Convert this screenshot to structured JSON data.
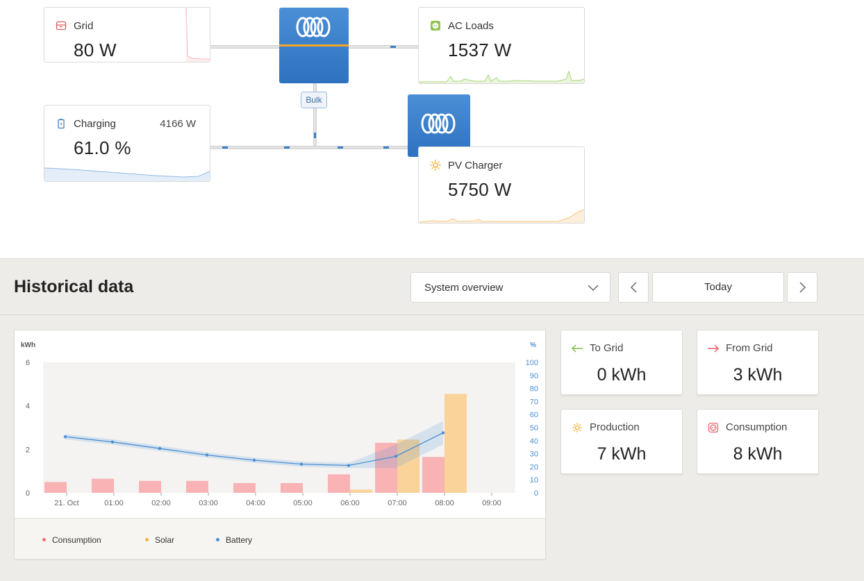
{
  "overview": {
    "grid": {
      "title": "Grid",
      "value": "80 W"
    },
    "ac_loads": {
      "title": "AC Loads",
      "value": "1537 W"
    },
    "battery": {
      "title": "Charging",
      "power": "4166 W",
      "value": "61.0 %"
    },
    "pv_charger": {
      "title": "PV Charger",
      "value": "5750 W"
    },
    "inverter_state": "Bulk"
  },
  "historical": {
    "title": "Historical data",
    "view_select": "System overview",
    "date_label": "Today",
    "stats": [
      {
        "title": "To Grid",
        "value": "0 kWh",
        "icon": "arrow-left-icon"
      },
      {
        "title": "From Grid",
        "value": "3 kWh",
        "icon": "arrow-right-icon"
      },
      {
        "title": "Production",
        "value": "7 kWh",
        "icon": "sun-icon"
      },
      {
        "title": "Consumption",
        "value": "8 kWh",
        "icon": "socket-icon"
      }
    ],
    "legend": [
      {
        "name": "Consumption",
        "color": "#f0707a"
      },
      {
        "name": "Solar",
        "color": "#f5b041"
      },
      {
        "name": "Battery",
        "color": "#4a8fd6"
      }
    ]
  },
  "colors": {
    "consumption": "#f9b3b5",
    "solar": "#f9d39a",
    "battery": "#4a8fd6",
    "accent": "#3a7fc8"
  },
  "chart_data": {
    "type": "bar",
    "ylabel_left": "kWh",
    "ylabel_right": "%",
    "ylim_left": [
      0,
      6
    ],
    "ylim_right": [
      0,
      100
    ],
    "yticks_left": [
      "0",
      "2",
      "4",
      "6"
    ],
    "yticks_right": [
      "0",
      "10",
      "20",
      "30",
      "40",
      "50",
      "60",
      "70",
      "80",
      "90",
      "100"
    ],
    "categories": [
      "21. Oct",
      "01:00",
      "02:00",
      "03:00",
      "04:00",
      "05:00",
      "06:00",
      "07:00",
      "08:00",
      "09:00"
    ],
    "series": [
      {
        "name": "Consumption",
        "axis": "left",
        "values": [
          0.5,
          0.65,
          0.55,
          0.55,
          0.45,
          0.45,
          0.85,
          2.3,
          1.65,
          null
        ]
      },
      {
        "name": "Solar",
        "axis": "left",
        "values": [
          0,
          0,
          0,
          0,
          0,
          0,
          0.15,
          2.45,
          4.55,
          null
        ]
      },
      {
        "name": "Battery",
        "axis": "right",
        "values": [
          43,
          39,
          34,
          29,
          25,
          22,
          21,
          28,
          46,
          null
        ]
      }
    ]
  }
}
